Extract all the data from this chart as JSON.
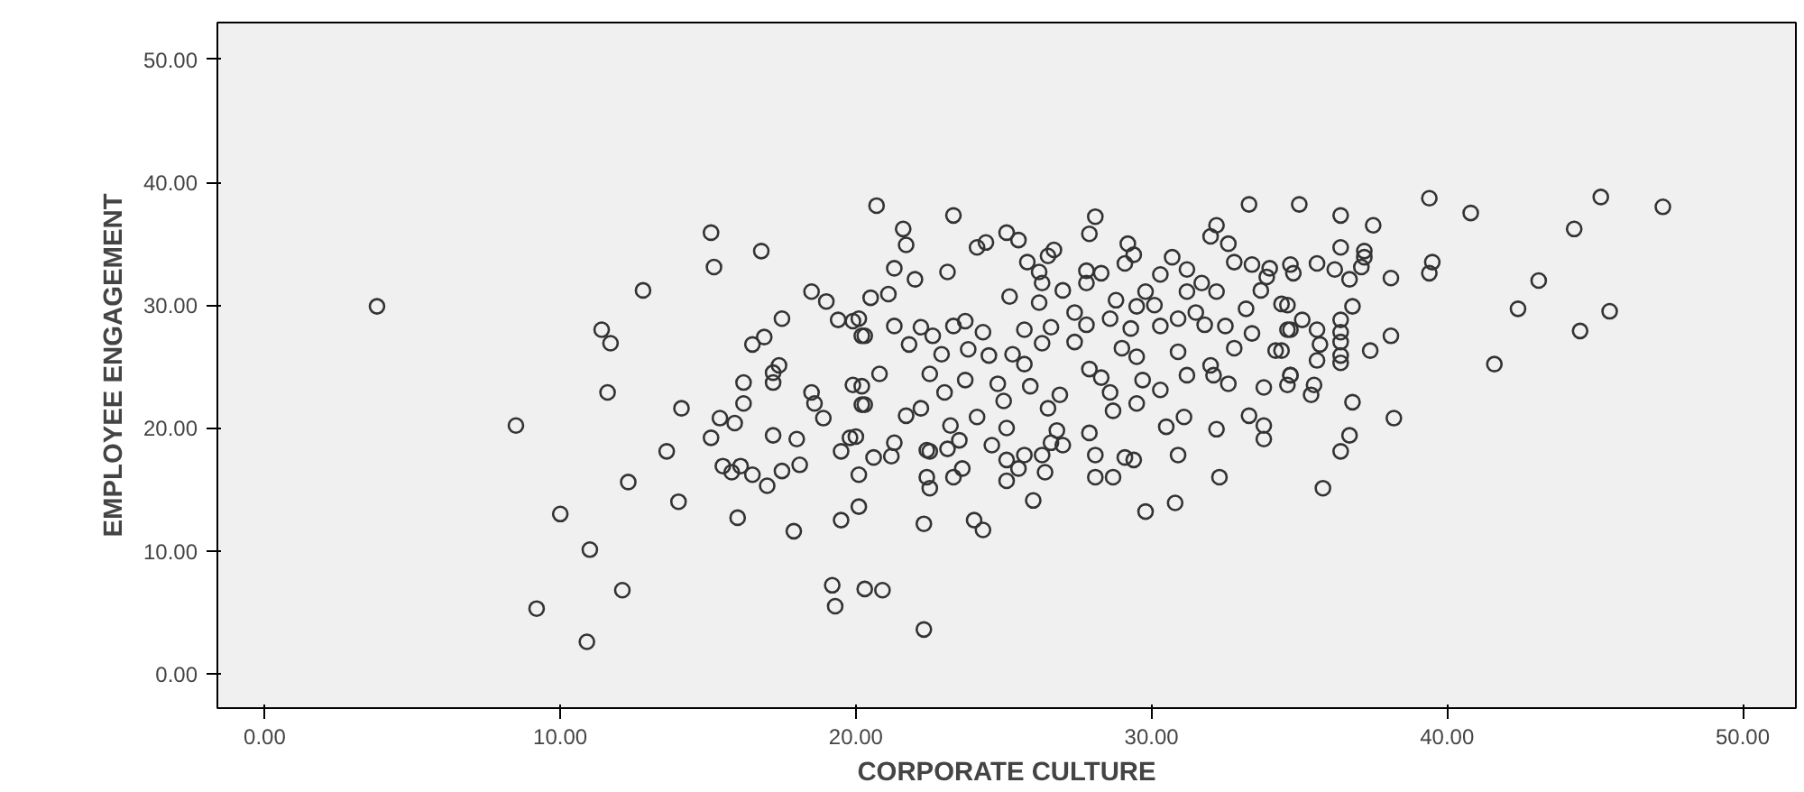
{
  "chart_data": {
    "type": "scatter",
    "xlabel": "CORPORATE CULTURE",
    "ylabel": "EMPLOYEE ENGAGEMENT",
    "xlim": [
      -1.6,
      51.8
    ],
    "ylim": [
      -2.8,
      53
    ],
    "xticks": [
      {
        "value": 0,
        "label": "0.00"
      },
      {
        "value": 10,
        "label": "10.00"
      },
      {
        "value": 20,
        "label": "20.00"
      },
      {
        "value": 30,
        "label": "30.00"
      },
      {
        "value": 40,
        "label": "40.00"
      },
      {
        "value": 50,
        "label": "50.00"
      }
    ],
    "yticks": [
      {
        "value": 0,
        "label": "0.00"
      },
      {
        "value": 10,
        "label": "10.00"
      },
      {
        "value": 20,
        "label": "20.00"
      },
      {
        "value": 30,
        "label": "30.00"
      },
      {
        "value": 40,
        "label": "40.00"
      },
      {
        "value": 50,
        "label": "50.00"
      }
    ],
    "marker": "circle",
    "grid": false,
    "series": [
      {
        "color": "#333333",
        "x": [
          3.8,
          15.1,
          16.8,
          15.2,
          12.8,
          18.5,
          19.0,
          19.4,
          19.9,
          20.2,
          17.5,
          11.4,
          11.7,
          16.9,
          16.5,
          17.4,
          17.2,
          17.2,
          16.2,
          11.6,
          18.5,
          18.6,
          19.9,
          20.2,
          16.2,
          14.1,
          15.4,
          15.9,
          18.9,
          8.5,
          15.1,
          17.2,
          18.0,
          19.8,
          19.5,
          13.6,
          15.5,
          16.1,
          15.8,
          16.5,
          17.0,
          17.5,
          18.1,
          20.1,
          12.3,
          14.0,
          16.0,
          17.9,
          19.5,
          20.1,
          10.0,
          11.0,
          12.1,
          9.2,
          10.9,
          19.2,
          19.3,
          20.3,
          22.3,
          20.9,
          22.3,
          24.0,
          24.3,
          26.0,
          29.8,
          30.8,
          32.3,
          28.1,
          28.7,
          25.1,
          22.4,
          22.5,
          23.3,
          23.6,
          25.5,
          26.4,
          25.1,
          28.1,
          29.4,
          30.9,
          22.5,
          23.1,
          20.6,
          21.2,
          26.3,
          27.0,
          36.4,
          35.8,
          35.0,
          36.4,
          37.5,
          39.4,
          40.8,
          44.3,
          47.3,
          45.2,
          36.4,
          37.2,
          37.2,
          37.1,
          34.7,
          35.6,
          36.2,
          36.7,
          38.1,
          39.5,
          39.4,
          43.1,
          42.4,
          45.5,
          44.5,
          41.6,
          36.8,
          34.6,
          35.1,
          36.4,
          34.7,
          35.6,
          36.4,
          36.4,
          35.7,
          38.1,
          37.4,
          36.4,
          35.6,
          36.4,
          34.7,
          34.6,
          35.5,
          35.4,
          36.8,
          38.2,
          36.7,
          34.4,
          20.7,
          23.3,
          21.6,
          21.7,
          28.1,
          27.9,
          33.3,
          32.2,
          32.6,
          32.0,
          25.1,
          25.5,
          24.1,
          24.4,
          26.7,
          26.5,
          25.8,
          29.2,
          29.4,
          29.1,
          21.3,
          22.0,
          23.1,
          26.2,
          26.3,
          27.8,
          28.3,
          27.8,
          30.7,
          31.2,
          30.3,
          31.7,
          32.8,
          33.4,
          34.0,
          33.9,
          34.8,
          33.7,
          32.2,
          31.2,
          20.5,
          21.1,
          25.2,
          27.0,
          26.2,
          28.8,
          29.8,
          29.5,
          30.1,
          20.1,
          20.3,
          21.3,
          22.2,
          22.6,
          23.3,
          23.7,
          24.3,
          25.7,
          26.6,
          27.4,
          27.8,
          28.6,
          29.3,
          30.3,
          30.9,
          31.5,
          31.8,
          32.5,
          33.2,
          33.4,
          34.4,
          34.6,
          21.8,
          22.9,
          23.8,
          24.5,
          25.3,
          25.7,
          26.3,
          27.4,
          27.9,
          29.0,
          29.5,
          30.9,
          32.0,
          32.8,
          34.2,
          20.8,
          20.2,
          22.5,
          23.0,
          23.7,
          24.8,
          25.9,
          26.9,
          28.3,
          28.6,
          29.7,
          30.3,
          31.2,
          32.1,
          32.6,
          33.8,
          34.7,
          20.3,
          21.7,
          22.2,
          23.2,
          24.1,
          25.0,
          25.1,
          26.5,
          26.8,
          27.9,
          28.7,
          29.5,
          30.5,
          31.1,
          32.2,
          33.3,
          33.8,
          20.0,
          21.3,
          22.4,
          23.5,
          24.6,
          25.7,
          26.6,
          29.1,
          33.8
        ],
        "values": [
          29.9,
          35.9,
          34.4,
          33.1,
          31.2,
          31.1,
          30.3,
          28.8,
          28.7,
          27.5,
          28.9,
          28.0,
          26.9,
          27.4,
          26.8,
          25.1,
          24.5,
          23.7,
          23.7,
          22.9,
          22.9,
          22.0,
          23.5,
          21.9,
          22.0,
          21.6,
          20.8,
          20.4,
          20.8,
          20.2,
          19.2,
          19.4,
          19.1,
          19.2,
          18.1,
          18.1,
          16.9,
          16.9,
          16.4,
          16.2,
          15.3,
          16.5,
          17.0,
          16.2,
          15.6,
          14.0,
          12.7,
          11.6,
          12.5,
          13.6,
          13.0,
          10.1,
          6.8,
          5.3,
          2.6,
          7.2,
          5.5,
          6.9,
          3.6,
          6.8,
          12.2,
          12.5,
          11.7,
          14.1,
          13.2,
          13.9,
          16.0,
          16.0,
          16.0,
          15.7,
          16.0,
          15.1,
          16.0,
          16.7,
          16.7,
          16.4,
          17.4,
          17.8,
          17.4,
          17.8,
          18.1,
          18.3,
          17.6,
          17.7,
          17.8,
          18.6,
          18.1,
          15.1,
          38.2,
          37.3,
          36.5,
          38.7,
          37.5,
          36.2,
          38.0,
          38.8,
          34.7,
          34.4,
          33.9,
          33.1,
          33.3,
          33.4,
          32.9,
          32.1,
          32.2,
          33.5,
          32.6,
          32.0,
          29.7,
          29.5,
          27.9,
          25.2,
          29.9,
          30.0,
          28.8,
          28.8,
          28.0,
          28.0,
          27.8,
          27.0,
          26.8,
          27.5,
          26.3,
          25.9,
          25.5,
          25.3,
          24.3,
          23.5,
          23.5,
          22.7,
          22.1,
          20.8,
          19.4,
          26.3,
          38.1,
          37.3,
          36.2,
          34.9,
          37.2,
          35.8,
          38.2,
          36.5,
          35.0,
          35.6,
          35.9,
          35.3,
          34.7,
          35.1,
          34.5,
          34.0,
          33.5,
          35.0,
          34.1,
          33.4,
          33.0,
          32.1,
          32.7,
          32.7,
          31.8,
          32.8,
          32.6,
          31.8,
          33.9,
          32.9,
          32.5,
          31.8,
          33.5,
          33.3,
          33.0,
          32.3,
          32.6,
          31.2,
          31.1,
          31.1,
          30.6,
          30.9,
          30.7,
          31.2,
          30.2,
          30.4,
          31.1,
          29.9,
          30.0,
          28.9,
          27.5,
          28.3,
          28.2,
          27.5,
          28.3,
          28.7,
          27.8,
          28.0,
          28.2,
          29.4,
          28.4,
          28.9,
          28.1,
          28.3,
          28.9,
          29.4,
          28.4,
          28.3,
          29.7,
          27.7,
          30.1,
          28.0,
          26.8,
          26.0,
          26.4,
          25.9,
          26.0,
          25.2,
          26.9,
          27.0,
          24.8,
          26.5,
          25.8,
          26.2,
          25.1,
          26.5,
          26.3,
          24.4,
          23.4,
          24.4,
          22.9,
          23.9,
          23.6,
          23.4,
          22.7,
          24.1,
          22.9,
          23.9,
          23.1,
          24.3,
          24.3,
          23.6,
          23.3,
          24.3,
          21.9,
          21.0,
          21.6,
          20.2,
          20.9,
          22.2,
          20.0,
          21.6,
          19.8,
          19.6,
          21.4,
          22.0,
          20.1,
          20.9,
          19.9,
          21.0,
          20.2,
          19.3,
          18.8,
          18.2,
          19.0,
          18.6,
          17.8,
          18.8,
          17.6,
          19.1
        ]
      }
    ]
  }
}
